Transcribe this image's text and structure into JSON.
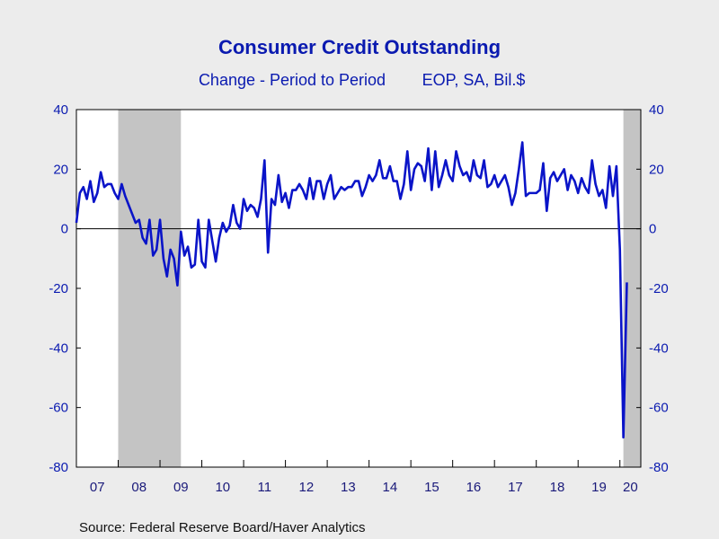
{
  "chart_data": {
    "type": "line",
    "title": "Consumer Credit Outstanding",
    "subtitle_left": "Change - Period to Period",
    "subtitle_right": "EOP, SA, Bil.$",
    "source": "Source:  Federal Reserve Board/Haver Analytics",
    "x_start": "2007-01",
    "x_end": "2020-07",
    "ylim": [
      -80,
      40
    ],
    "y_ticks": [
      40,
      20,
      0,
      -20,
      -40,
      -60,
      -80
    ],
    "y_tick_labels": [
      "40",
      "20",
      "0",
      "-20",
      "-40",
      "-60",
      "-80"
    ],
    "x_tick_labels": [
      "07",
      "08",
      "09",
      "10",
      "11",
      "12",
      "13",
      "14",
      "15",
      "16",
      "17",
      "18",
      "19",
      "20"
    ],
    "grid": false,
    "zero_line": true,
    "recessions": [
      {
        "start": "2008-01",
        "end": "2009-06"
      },
      {
        "start": "2020-02",
        "end": "2020-07"
      }
    ],
    "colors": {
      "line": "#0a14c8",
      "text": "#0a1ab0",
      "recession": "#c4c4c4",
      "plot_bg": "#ffffff",
      "page_bg": "#ececec"
    },
    "series": [
      {
        "x_start": "2007-01",
        "values": [
          2,
          12,
          14,
          10,
          16,
          9,
          12,
          19,
          14,
          15,
          15,
          12,
          10,
          15,
          11,
          8,
          5,
          2,
          3,
          -3,
          -5,
          3,
          -9,
          -7,
          3,
          -10,
          -16,
          -7,
          -10,
          -19,
          -1,
          -9,
          -6,
          -13,
          -12,
          3,
          -11,
          -13,
          3,
          -4,
          -11,
          -3,
          2,
          -1,
          1,
          8,
          2,
          0,
          10,
          6,
          8,
          7,
          4,
          10,
          23,
          -8,
          10,
          8,
          18,
          9,
          12,
          7,
          13,
          13,
          15,
          13,
          10,
          17,
          10,
          16,
          16,
          10,
          15,
          18,
          10,
          12,
          14,
          13,
          14,
          14,
          16,
          16,
          11,
          14,
          18,
          16,
          18,
          23,
          17,
          17,
          21,
          16,
          16,
          10,
          15,
          26,
          13,
          20,
          22,
          21,
          16,
          27,
          13,
          26,
          14,
          18,
          23,
          18,
          16,
          26,
          21,
          18,
          19,
          16,
          23,
          18,
          17,
          23,
          14,
          15,
          18,
          14,
          16,
          18,
          14,
          8,
          12,
          20,
          29,
          11,
          12,
          12,
          12,
          13,
          22,
          6,
          17,
          19,
          16,
          18,
          20,
          13,
          18,
          16,
          12,
          17,
          14,
          12,
          23,
          15,
          11,
          13,
          7,
          21,
          11,
          21,
          -7,
          -70,
          -18
        ]
      }
    ]
  }
}
